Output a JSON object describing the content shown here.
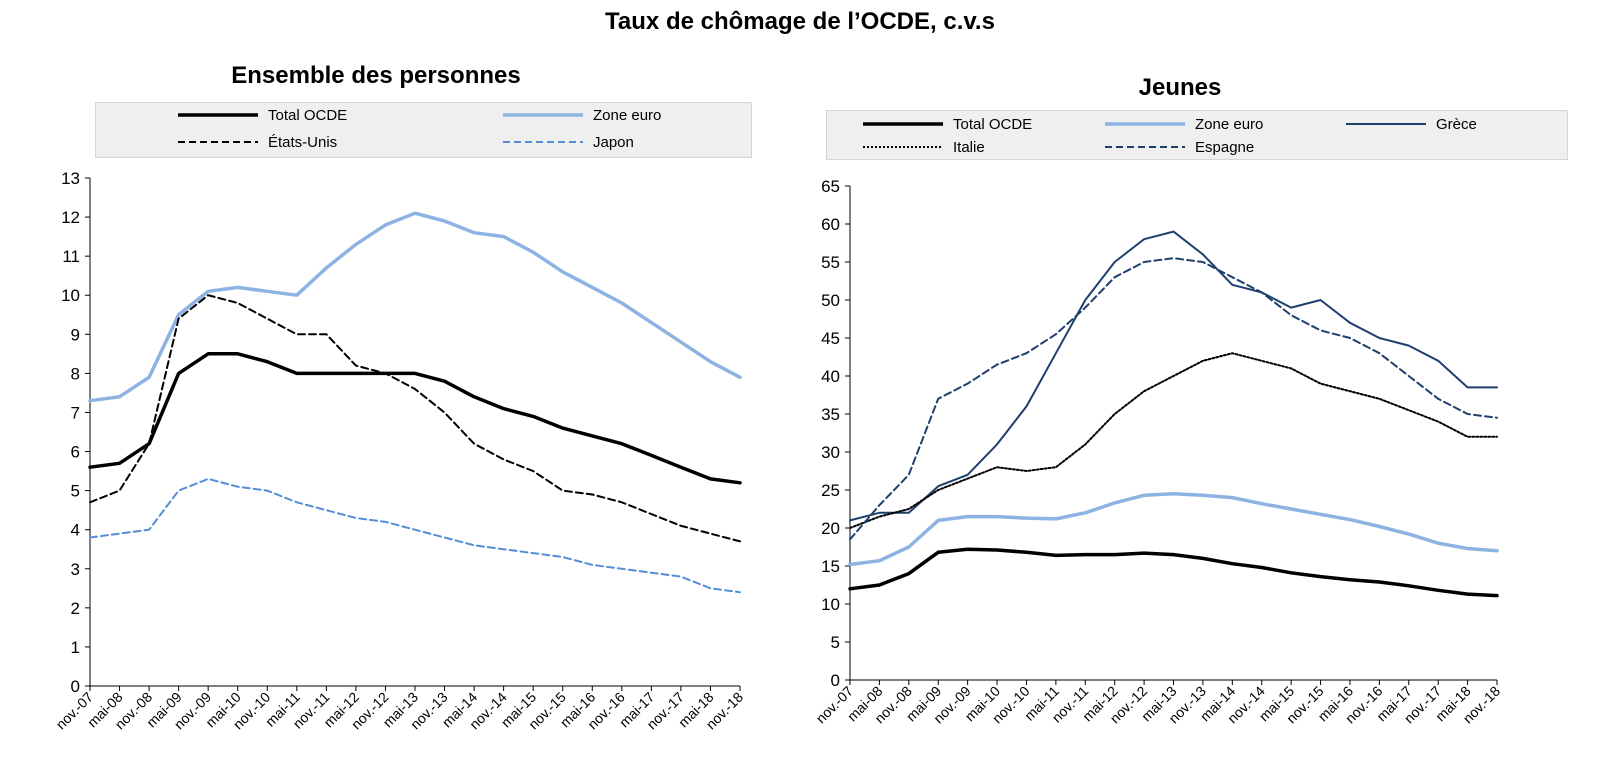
{
  "page_title": "Taux de chômage de l’OCDE, c.v.s",
  "chart_data": [
    {
      "type": "line",
      "title": "Ensemble des personnes",
      "xlabel": "",
      "ylabel": "",
      "ylim": [
        0,
        13
      ],
      "yticks": [
        0,
        1,
        2,
        3,
        4,
        5,
        6,
        7,
        8,
        9,
        10,
        11,
        12,
        13
      ],
      "x_start": "nov.-07",
      "x_end": "nov.-18",
      "x": [
        "nov.-07",
        "mai-08",
        "nov.-08",
        "mai-09",
        "nov.-09",
        "mai-10",
        "nov.-10",
        "mai-11",
        "nov.-11",
        "mai-12",
        "nov.-12",
        "mai-13",
        "nov.-13",
        "mai-14",
        "nov.-14",
        "mai-15",
        "nov.-15",
        "mai-16",
        "nov.-16",
        "mai-17",
        "nov.-17",
        "mai-18",
        "nov.-18"
      ],
      "grid": false,
      "legend": "top",
      "series": [
        {
          "name": "Total OCDE",
          "color": "#000000",
          "style": "solid",
          "width": 3.5,
          "values": [
            5.6,
            5.7,
            6.2,
            8.0,
            8.5,
            8.5,
            8.3,
            8.0,
            8.0,
            8.0,
            8.0,
            8.0,
            7.8,
            7.4,
            7.1,
            6.9,
            6.6,
            6.4,
            6.2,
            5.9,
            5.6,
            5.3,
            5.2
          ]
        },
        {
          "name": "Zone euro",
          "color": "#8db3e2",
          "style": "solid",
          "width": 3.5,
          "values": [
            7.3,
            7.4,
            7.9,
            9.5,
            10.1,
            10.2,
            10.1,
            10.0,
            10.7,
            11.3,
            11.8,
            12.1,
            11.9,
            11.6,
            11.5,
            11.1,
            10.6,
            10.2,
            9.8,
            9.3,
            8.8,
            8.3,
            7.9
          ]
        },
        {
          "name": "États-Unis",
          "color": "#000000",
          "style": "dashed",
          "width": 2,
          "values": [
            4.7,
            5.0,
            6.2,
            9.4,
            10.0,
            9.8,
            9.4,
            9.0,
            9.0,
            8.2,
            8.0,
            7.6,
            7.0,
            6.2,
            5.8,
            5.5,
            5.0,
            4.9,
            4.7,
            4.4,
            4.1,
            3.9,
            3.7
          ]
        },
        {
          "name": "Japon",
          "color": "#558ed5",
          "style": "dashed",
          "width": 2,
          "values": [
            3.8,
            3.9,
            4.0,
            5.0,
            5.3,
            5.1,
            5.0,
            4.7,
            4.5,
            4.3,
            4.2,
            4.0,
            3.8,
            3.6,
            3.5,
            3.4,
            3.3,
            3.1,
            3.0,
            2.9,
            2.8,
            2.5,
            2.4
          ]
        }
      ]
    },
    {
      "type": "line",
      "title": "Jeunes",
      "xlabel": "",
      "ylabel": "",
      "ylim": [
        0,
        65
      ],
      "yticks": [
        0,
        5,
        10,
        15,
        20,
        25,
        30,
        35,
        40,
        45,
        50,
        55,
        60,
        65
      ],
      "x_start": "nov.-07",
      "x_end": "nov.-18",
      "x": [
        "nov.-07",
        "mai-08",
        "nov.-08",
        "mai-09",
        "nov.-09",
        "mai-10",
        "nov.-10",
        "mai-11",
        "nov.-11",
        "mai-12",
        "nov.-12",
        "mai-13",
        "nov.-13",
        "mai-14",
        "nov.-14",
        "mai-15",
        "nov.-15",
        "mai-16",
        "nov.-16",
        "mai-17",
        "nov.-17",
        "mai-18",
        "nov.-18"
      ],
      "grid": false,
      "legend": "top",
      "series": [
        {
          "name": "Total OCDE",
          "color": "#000000",
          "style": "solid",
          "width": 3.5,
          "values": [
            12.0,
            12.5,
            14.0,
            16.8,
            17.2,
            17.1,
            16.8,
            16.4,
            16.5,
            16.5,
            16.7,
            16.5,
            16.0,
            15.3,
            14.8,
            14.1,
            13.6,
            13.2,
            12.9,
            12.4,
            11.8,
            11.3,
            11.1
          ]
        },
        {
          "name": "Zone euro",
          "color": "#8db3e2",
          "style": "solid",
          "width": 3.5,
          "values": [
            15.2,
            15.7,
            17.5,
            21.0,
            21.5,
            21.5,
            21.3,
            21.2,
            22.0,
            23.3,
            24.3,
            24.5,
            24.3,
            24.0,
            23.2,
            22.5,
            21.8,
            21.1,
            20.2,
            19.2,
            18.0,
            17.3,
            17.0
          ]
        },
        {
          "name": "Grèce",
          "color": "#1f3f6d",
          "style": "solid",
          "width": 2,
          "values": [
            21.0,
            22.0,
            22.0,
            25.5,
            27.0,
            31.0,
            36.0,
            43.0,
            50.0,
            55.0,
            58.0,
            59.0,
            56.0,
            52.0,
            51.0,
            49.0,
            50.0,
            47.0,
            45.0,
            44.0,
            42.0,
            38.5,
            38.5
          ]
        },
        {
          "name": "Italie",
          "color": "#000000",
          "style": "dotted",
          "width": 2,
          "values": [
            20.0,
            21.5,
            22.5,
            25.0,
            26.5,
            28.0,
            27.5,
            28.0,
            31.0,
            35.0,
            38.0,
            40.0,
            42.0,
            43.0,
            42.0,
            41.0,
            39.0,
            38.0,
            37.0,
            35.5,
            34.0,
            32.0,
            32.0
          ]
        },
        {
          "name": "Espagne",
          "color": "#1f3f6d",
          "style": "dashed",
          "width": 2,
          "values": [
            18.5,
            23.0,
            27.0,
            37.0,
            39.0,
            41.5,
            43.0,
            45.5,
            49.0,
            53.0,
            55.0,
            55.5,
            55.0,
            53.0,
            51.0,
            48.0,
            46.0,
            45.0,
            43.0,
            40.0,
            37.0,
            35.0,
            34.5
          ]
        }
      ]
    }
  ]
}
